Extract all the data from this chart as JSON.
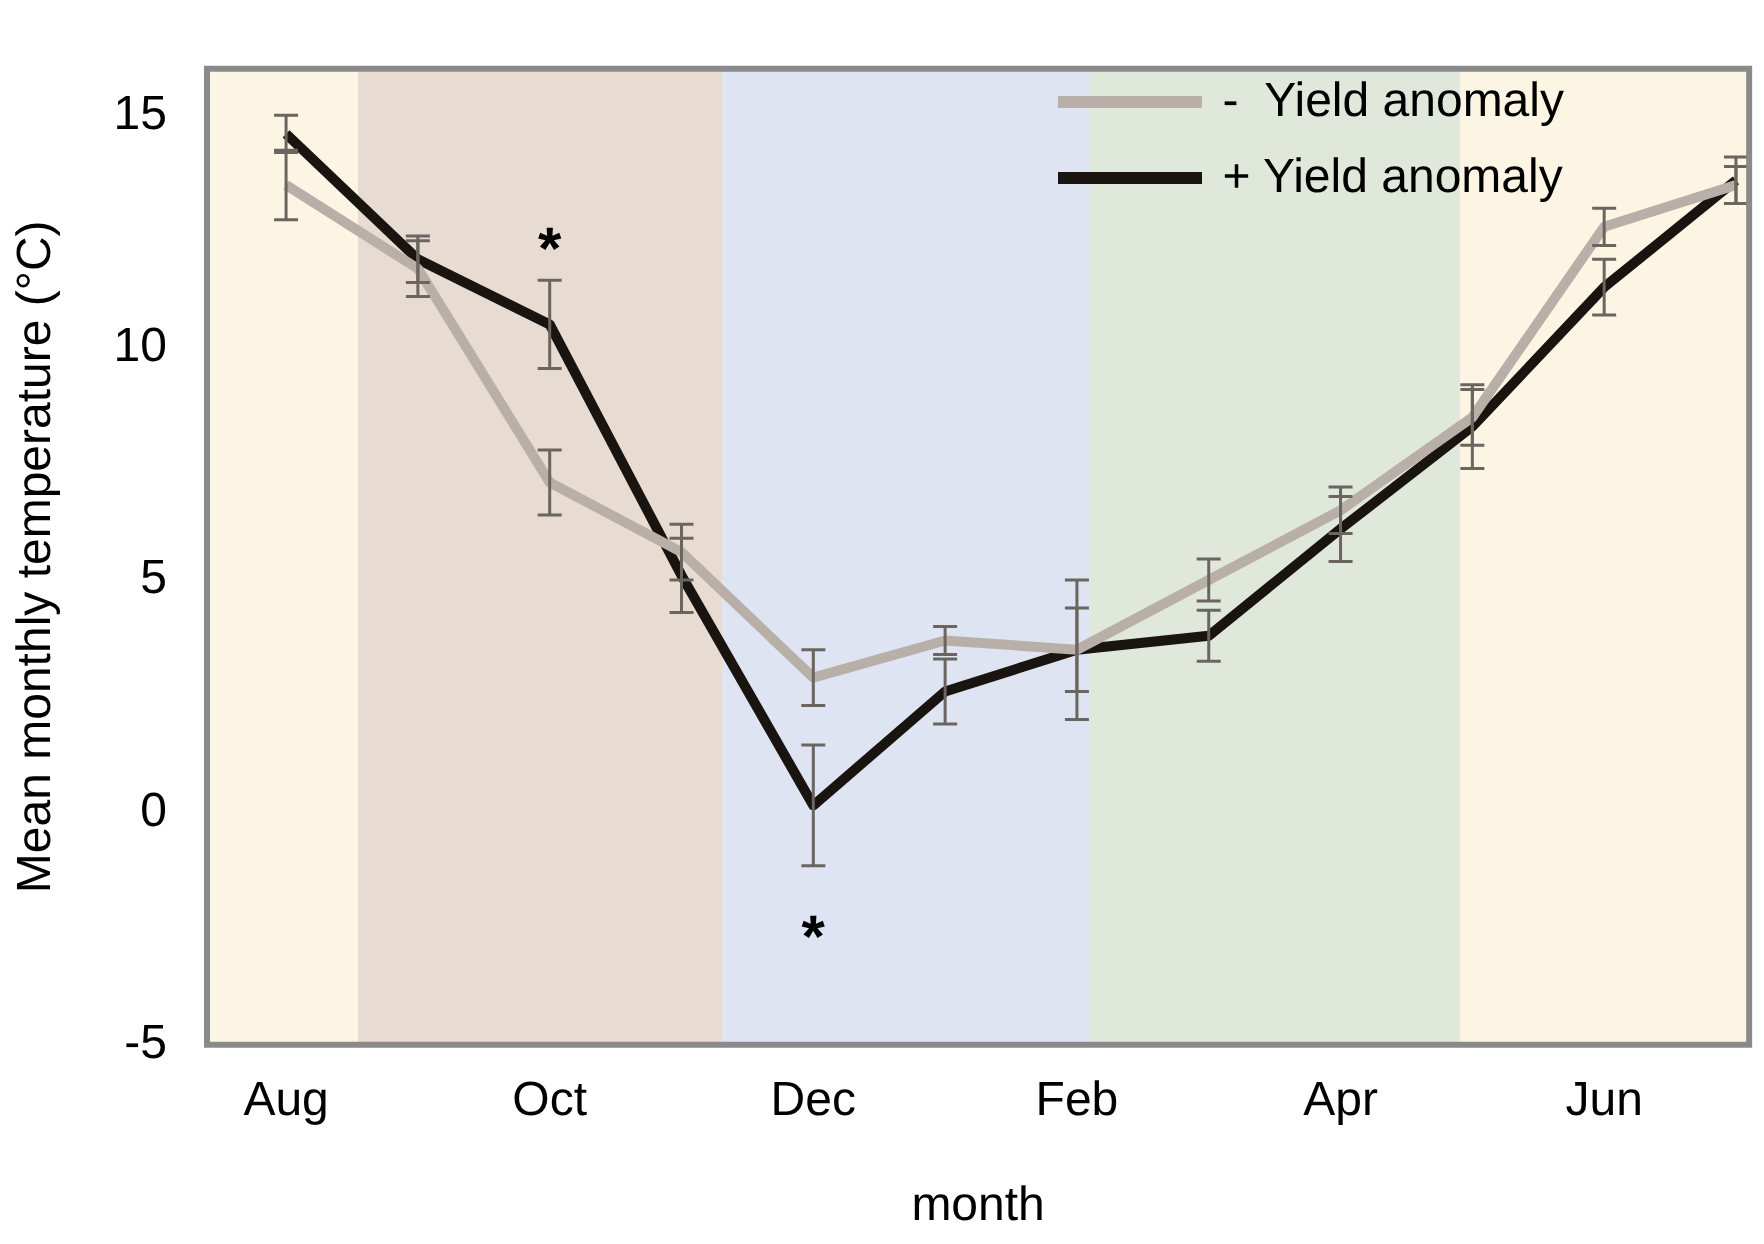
{
  "chart_data": {
    "type": "line",
    "xlabel": "month",
    "ylabel": "Mean monthly temperature (°C)",
    "categories": [
      "Aug",
      null,
      "Oct",
      null,
      "Dec",
      null,
      "Feb",
      null,
      "Apr",
      null,
      "Jun",
      null
    ],
    "series": [
      {
        "name": "-  Yield anomaly",
        "color": "#b8b0a8",
        "values": [
          13.5,
          11.7,
          7.1,
          5.6,
          2.9,
          3.7,
          3.5,
          5.0,
          6.5,
          8.5,
          12.6,
          13.5
        ],
        "errors": [
          0.75,
          0.6,
          0.7,
          0.6,
          0.6,
          0.3,
          0.9,
          0.45,
          0.5,
          0.6,
          0.4,
          0.4
        ]
      },
      {
        "name": "+ Yield anomaly",
        "color": "#1a1410",
        "values": [
          14.6,
          11.9,
          10.5,
          5.1,
          0.15,
          2.6,
          3.5,
          3.8,
          6.1,
          8.3,
          11.3,
          13.6
        ],
        "errors": [
          0.4,
          0.5,
          0.95,
          0.8,
          1.3,
          0.7,
          1.5,
          0.55,
          0.7,
          0.9,
          0.6,
          0.5
        ]
      }
    ],
    "ylim": [
      -5,
      16
    ],
    "yticks": [
      -5,
      0,
      5,
      10,
      15
    ],
    "grid": false,
    "legend": "top right",
    "marker": "none",
    "line_style": "solid",
    "annotations": [
      "*",
      "*"
    ]
  }
}
